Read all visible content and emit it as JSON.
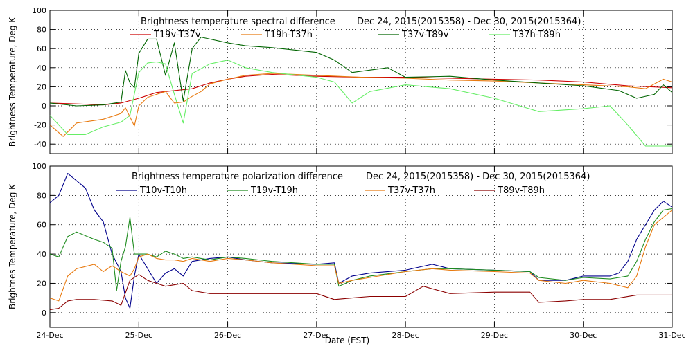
{
  "chart_data": [
    {
      "type": "line",
      "title": "Brightness temperature spectral difference",
      "date_range": "Dec 24, 2015(2015358)  -  Dec 30, 2015(2015364)",
      "ylabel": "Brightness Temperature, Deg K",
      "xlabel": "",
      "ylim": [
        -50,
        100
      ],
      "yticks": [
        -40,
        -20,
        0,
        20,
        40,
        60,
        80,
        100
      ],
      "xlim": [
        0,
        7
      ],
      "xticks": [
        0,
        1,
        2,
        3,
        4,
        5,
        6,
        7
      ],
      "xtick_labels": [
        "",
        "",
        "",
        "",
        "",
        "",
        "",
        ""
      ],
      "grid": true,
      "legend_placement": "top",
      "series": [
        {
          "name": "T19v-T37v",
          "color": "#cc0000",
          "x": [
            0,
            0.3,
            0.6,
            0.8,
            1.0,
            1.2,
            1.4,
            1.6,
            1.8,
            2.0,
            2.2,
            2.5,
            3.0,
            3.5,
            4.0,
            4.5,
            5.0,
            5.5,
            6.0,
            6.5,
            7.0
          ],
          "y": [
            3,
            2,
            1,
            3,
            8,
            14,
            16,
            18,
            24,
            28,
            31,
            33,
            31,
            30,
            30,
            29,
            28,
            27,
            25,
            21,
            19
          ]
        },
        {
          "name": "T19h-T37h",
          "color": "#e87a10",
          "x": [
            0,
            0.15,
            0.3,
            0.6,
            0.8,
            0.85,
            0.95,
            1.0,
            1.1,
            1.2,
            1.3,
            1.4,
            1.5,
            1.6,
            1.7,
            1.8,
            2.0,
            2.2,
            2.5,
            3.0,
            3.5,
            4.0,
            4.5,
            5.0,
            5.5,
            6.0,
            6.5,
            6.7,
            6.9,
            7.0
          ],
          "y": [
            -20,
            -32,
            -18,
            -14,
            -8,
            -2,
            -21,
            0,
            9,
            12,
            15,
            3,
            4,
            10,
            15,
            23,
            28,
            32,
            34,
            32,
            30,
            29,
            27,
            26,
            24,
            22,
            20,
            18,
            28,
            25
          ]
        },
        {
          "name": "T37v-T89v",
          "color": "#006400",
          "x": [
            0,
            0.3,
            0.6,
            0.8,
            0.85,
            0.9,
            0.95,
            1.0,
            1.1,
            1.2,
            1.3,
            1.4,
            1.5,
            1.6,
            1.7,
            1.8,
            2.0,
            2.2,
            2.5,
            3.0,
            3.2,
            3.4,
            3.8,
            4.0,
            4.5,
            5.0,
            5.5,
            6.0,
            6.4,
            6.6,
            6.8,
            6.9,
            7.0
          ],
          "y": [
            3,
            0,
            1,
            4,
            37,
            24,
            19,
            55,
            70,
            70,
            32,
            66,
            5,
            60,
            72,
            70,
            66,
            63,
            61,
            56,
            48,
            35,
            40,
            30,
            31,
            27,
            24,
            21,
            16,
            8,
            12,
            22,
            14
          ]
        },
        {
          "name": "T37h-T89h",
          "color": "#66ee66",
          "x": [
            0,
            0.2,
            0.4,
            0.6,
            0.8,
            0.9,
            1.0,
            1.1,
            1.2,
            1.3,
            1.4,
            1.5,
            1.6,
            1.8,
            2.0,
            2.2,
            2.5,
            3.0,
            3.2,
            3.4,
            3.6,
            4.0,
            4.5,
            5.0,
            5.5,
            6.0,
            6.3,
            6.5,
            6.7,
            6.9,
            7.0
          ],
          "y": [
            -10,
            -30,
            -30,
            -22,
            -17,
            -10,
            35,
            45,
            46,
            44,
            12,
            -18,
            34,
            44,
            48,
            40,
            35,
            30,
            25,
            3,
            15,
            22,
            18,
            8,
            -6,
            -3,
            0,
            -20,
            -42,
            -42,
            -42
          ]
        }
      ]
    },
    {
      "type": "line",
      "title": "Brightness temperature polarization difference",
      "date_range": "Dec 24, 2015(2015358)  -  Dec 30, 2015(2015364)",
      "ylabel": "Brightnes Temperature, Deg K",
      "xlabel": "Date (EST)",
      "ylim": [
        -10,
        100
      ],
      "yticks": [
        0,
        20,
        40,
        60,
        80,
        100
      ],
      "xlim": [
        0,
        7
      ],
      "xticks": [
        0,
        1,
        2,
        3,
        4,
        5,
        6,
        7
      ],
      "xtick_labels": [
        "24-Dec",
        "25-Dec",
        "26-Dec",
        "27-Dec",
        "28-Dec",
        "29-Dec",
        "30-Dec",
        "31-Dec"
      ],
      "grid": true,
      "legend_placement": "top",
      "series": [
        {
          "name": "T10v-T10h",
          "color": "#00008b",
          "x": [
            0,
            0.1,
            0.2,
            0.3,
            0.4,
            0.5,
            0.6,
            0.7,
            0.8,
            0.85,
            0.9,
            0.95,
            1.0,
            1.1,
            1.2,
            1.3,
            1.4,
            1.5,
            1.6,
            1.8,
            2.0,
            2.2,
            2.5,
            3.0,
            3.2,
            3.25,
            3.4,
            3.6,
            4.0,
            4.3,
            4.5,
            5.0,
            5.4,
            5.5,
            5.8,
            6.0,
            6.3,
            6.4,
            6.5,
            6.6,
            6.7,
            6.8,
            6.9,
            7.0
          ],
          "y": [
            75,
            80,
            95,
            90,
            85,
            70,
            62,
            40,
            28,
            10,
            3,
            25,
            40,
            30,
            20,
            27,
            30,
            25,
            35,
            37,
            38,
            36,
            34,
            33,
            34,
            20,
            25,
            27,
            29,
            33,
            30,
            29,
            28,
            22,
            22,
            25,
            25,
            27,
            35,
            50,
            60,
            70,
            76,
            72
          ]
        },
        {
          "name": "T19v-T19h",
          "color": "#1e8c1e",
          "x": [
            0,
            0.1,
            0.2,
            0.3,
            0.5,
            0.6,
            0.7,
            0.75,
            0.8,
            0.85,
            0.9,
            0.95,
            1.0,
            1.1,
            1.2,
            1.3,
            1.4,
            1.5,
            1.6,
            1.8,
            2.0,
            2.2,
            2.5,
            3.0,
            3.2,
            3.25,
            3.4,
            3.6,
            4.0,
            4.3,
            4.5,
            5.0,
            5.4,
            5.5,
            5.8,
            6.0,
            6.3,
            6.5,
            6.6,
            6.7,
            6.8,
            6.9,
            7.0
          ],
          "y": [
            40,
            38,
            52,
            55,
            50,
            48,
            44,
            15,
            35,
            45,
            65,
            40,
            40,
            40,
            38,
            42,
            40,
            37,
            38,
            36,
            38,
            37,
            35,
            33,
            33,
            18,
            22,
            25,
            28,
            30,
            30,
            29,
            28,
            24,
            22,
            24,
            23,
            25,
            35,
            50,
            62,
            70,
            71
          ]
        },
        {
          "name": "T37v-T37h",
          "color": "#e87a10",
          "x": [
            0,
            0.1,
            0.2,
            0.3,
            0.5,
            0.6,
            0.7,
            0.8,
            0.9,
            0.95,
            1.0,
            1.1,
            1.2,
            1.3,
            1.4,
            1.5,
            1.6,
            1.8,
            2.0,
            2.2,
            2.5,
            3.0,
            3.2,
            3.25,
            3.4,
            3.6,
            4.0,
            4.3,
            4.5,
            5.0,
            5.4,
            5.5,
            5.8,
            6.0,
            6.3,
            6.5,
            6.6,
            6.7,
            6.8,
            6.9,
            7.0
          ],
          "y": [
            10,
            8,
            25,
            30,
            33,
            28,
            32,
            28,
            25,
            30,
            38,
            40,
            37,
            36,
            36,
            35,
            37,
            35,
            37,
            36,
            34,
            32,
            32,
            20,
            22,
            24,
            28,
            30,
            29,
            28,
            27,
            22,
            20,
            22,
            20,
            17,
            25,
            45,
            60,
            65,
            70
          ]
        },
        {
          "name": "T89v-T89h",
          "color": "#8b0000",
          "x": [
            0,
            0.1,
            0.2,
            0.3,
            0.5,
            0.7,
            0.8,
            0.9,
            1.0,
            1.1,
            1.2,
            1.3,
            1.4,
            1.5,
            1.6,
            1.8,
            2.0,
            2.5,
            3.0,
            3.2,
            3.4,
            3.6,
            4.0,
            4.2,
            4.5,
            5.0,
            5.4,
            5.5,
            5.8,
            6.0,
            6.3,
            6.6,
            7.0
          ],
          "y": [
            2,
            3,
            8,
            9,
            9,
            8,
            5,
            22,
            26,
            22,
            20,
            18,
            19,
            20,
            15,
            13,
            13,
            13,
            13,
            9,
            10,
            11,
            11,
            18,
            13,
            14,
            14,
            7,
            8,
            9,
            9,
            12,
            12
          ]
        }
      ]
    }
  ]
}
